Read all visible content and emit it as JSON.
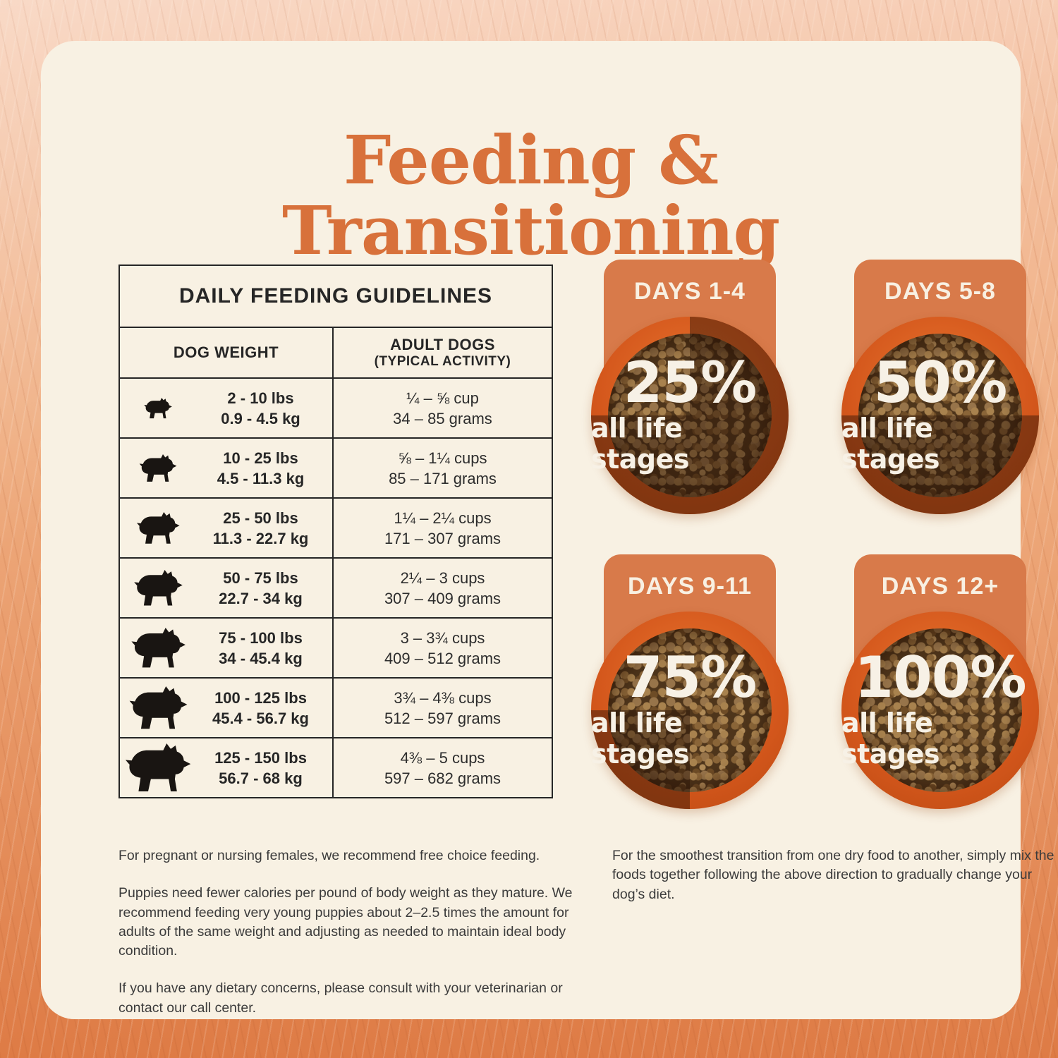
{
  "title": "Feeding & Transitioning",
  "colors": {
    "title_orange": "#D8713B",
    "tab_orange": "#D87A4A",
    "bowl_rim_orange": "#D4571C",
    "card_cream": "#F8F1E3",
    "background_orange": "#DE7B45",
    "text_dark": "#262626"
  },
  "table": {
    "title": "DAILY FEEDING GUIDELINES",
    "col1_header": "DOG WEIGHT",
    "col2_header_line1": "ADULT DOGS",
    "col2_header_line2": "(TYPICAL ACTIVITY)",
    "rows": [
      {
        "dog": "chihuahua",
        "icon": 30,
        "lbs": "2 - 10 lbs",
        "kg": "0.9 - 4.5 kg",
        "cups": "¼ – ⅝ cup",
        "grams": "34 – 85 grams"
      },
      {
        "dog": "french-bulldog",
        "icon": 40,
        "lbs": "10 - 25 lbs",
        "kg": "4.5 - 11.3 kg",
        "cups": "⅝ – 1¼ cups",
        "grams": "85 – 171 grams"
      },
      {
        "dog": "small-spitz",
        "icon": 46,
        "lbs": "25 - 50 lbs",
        "kg": "11.3 - 22.7 kg",
        "cups": "1¼ – 2¼ cups",
        "grams": "171 – 307 grams"
      },
      {
        "dog": "medium-dog",
        "icon": 52,
        "lbs": "50 - 75 lbs",
        "kg": "22.7 - 34 kg",
        "cups": "2¼ – 3 cups",
        "grams": "307 – 409 grams"
      },
      {
        "dog": "great-dane",
        "icon": 58,
        "lbs": "75 - 100 lbs",
        "kg": "34 - 45.4 kg",
        "cups": "3 – 3¾ cups",
        "grams": "409 – 512 grams"
      },
      {
        "dog": "labrador",
        "icon": 62,
        "lbs": "100 - 125 lbs",
        "kg": "45.4 - 56.7 kg",
        "cups": "3¾ – 4⅜ cups",
        "grams": "512 – 597 grams"
      },
      {
        "dog": "mountain-dog",
        "icon": 70,
        "lbs": "125 - 150 lbs",
        "kg": "56.7 - 68 kg",
        "cups": "4⅜ – 5 cups",
        "grams": "597 – 682 grams"
      }
    ]
  },
  "transition": {
    "bowls": [
      {
        "days": "DAYS 1-4",
        "percent": "25%",
        "label": "all life stages",
        "mix": 25
      },
      {
        "days": "DAYS 5-8",
        "percent": "50%",
        "label": "all life stages",
        "mix": 50
      },
      {
        "days": "DAYS 9-11",
        "percent": "75%",
        "label": "all life stages",
        "mix": 75
      },
      {
        "days": "DAYS 12+",
        "percent": "100%",
        "label": "all life stages",
        "mix": 100
      }
    ]
  },
  "notes_left": [
    "For pregnant or nursing females, we recommend free choice feeding.",
    "Puppies need fewer calories per pound of body weight as they mature. We recommend feeding very young puppies about 2–2.5 times the amount for adults of the same weight and adjusting as needed to maintain ideal body condition.",
    "If you have any dietary concerns, please consult with your veterinarian or contact our call center."
  ],
  "notes_right": [
    "For the smoothest transition from one dry food to another, simply mix the foods together following the above direction to gradually change your dog’s diet."
  ]
}
